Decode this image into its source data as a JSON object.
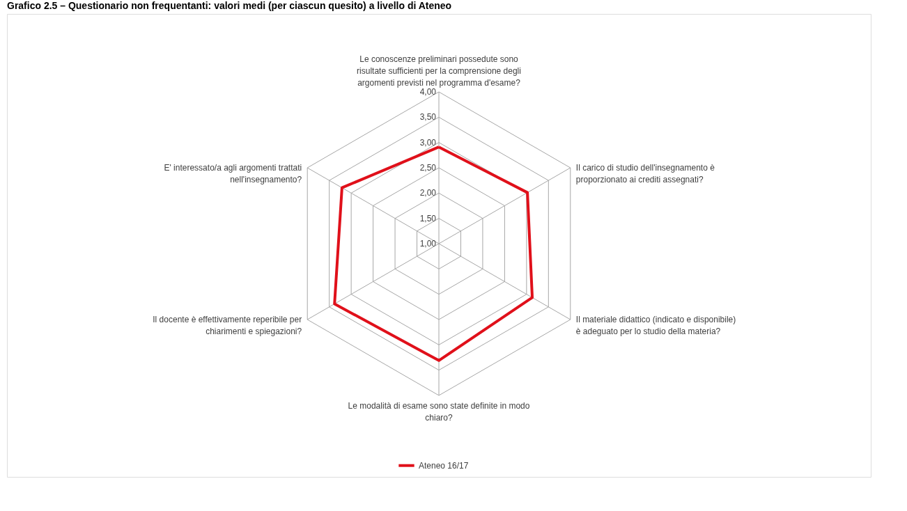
{
  "chart_data": {
    "type": "radar",
    "title": "Grafico 2.5 – Questionario non frequentanti: valori medi (per ciascun quesito) a livello di Ateneo",
    "categories": [
      "Le conoscenze preliminari possedute sono risultate sufficienti per la comprensione degli argomenti previsti nel programma d'esame?",
      "Il carico di studio dell'insegnamento è proporzionato ai crediti assegnati?",
      "Il materiale didattico (indicato e disponibile) è adeguato per lo studio della materia?",
      "Le modalità di esame sono state definite in modo chiaro?",
      "Il docente è effettivamente reperibile per chiarimenti e spiegazioni?",
      "E' interessato/a agli argomenti trattati nell'insegnamento?"
    ],
    "series": [
      {
        "name": "Ateneo 16/17",
        "color": "#e0101a",
        "values": [
          2.91,
          3.02,
          3.13,
          3.31,
          3.38,
          3.21
        ]
      }
    ],
    "ylim": [
      1,
      4
    ],
    "yticks": [
      {
        "value": 1,
        "label": "1,00"
      },
      {
        "value": 1.5,
        "label": "1,50"
      },
      {
        "value": 2,
        "label": "2,00"
      },
      {
        "value": 2.5,
        "label": "2,50"
      },
      {
        "value": 3,
        "label": "3,00"
      },
      {
        "value": 3.5,
        "label": "3,50"
      },
      {
        "value": 4,
        "label": "4,00"
      }
    ],
    "grid": true,
    "legend": "bottom"
  }
}
